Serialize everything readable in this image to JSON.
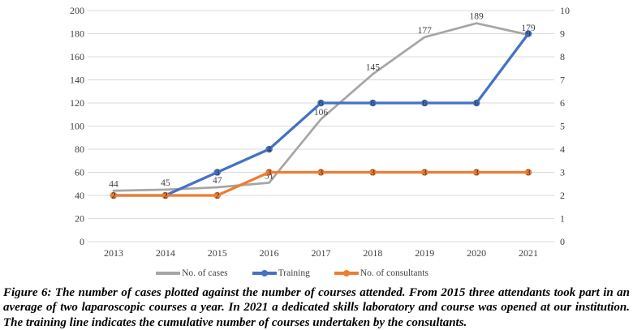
{
  "figure": {
    "caption": "Figure 6: The number of cases plotted against the number of courses attended.  From 2015 three attendants took part in an average of two laparoscopic courses a year. In 2021 a dedicated skills laboratory and course was opened at our institution. The training line indicates the cumulative number of courses undertaken by the consultants."
  },
  "chart_data": {
    "type": "line",
    "title": "",
    "xlabel": "",
    "ylabel": "",
    "grid": true,
    "legend_position": "bottom",
    "categories": [
      "2013",
      "2014",
      "2015",
      "2016",
      "2017",
      "2018",
      "2019",
      "2020",
      "2021"
    ],
    "series": [
      {
        "name": "No. of cases",
        "axis": "left",
        "color": "#A6A6A6",
        "marker": false,
        "label_position": "above",
        "values": [
          44,
          45,
          47,
          51,
          106,
          145,
          177,
          189,
          179
        ],
        "labels": [
          "44",
          "45",
          "47",
          "51",
          "106",
          "145",
          "177",
          "189",
          "179"
        ]
      },
      {
        "name": "Training",
        "axis": "right",
        "color": "#4472C4",
        "marker": true,
        "label_position": "center",
        "values": [
          2,
          2,
          3,
          4,
          6,
          6,
          6,
          6,
          9
        ],
        "labels": [
          "2",
          "2",
          "3",
          "4",
          "6",
          "6",
          "6",
          "6",
          "9"
        ]
      },
      {
        "name": "No. of consultants",
        "axis": "right",
        "color": "#ED7D31",
        "marker": true,
        "label_position": "center",
        "values": [
          2,
          2,
          2,
          3,
          3,
          3,
          3,
          3,
          3
        ],
        "labels": [
          "2",
          "2",
          "2",
          "3",
          "3",
          "3",
          "3",
          "3",
          "3"
        ]
      }
    ],
    "left_axis": {
      "min": 0,
      "max": 200,
      "step": 20,
      "ticks": [
        "0",
        "20",
        "40",
        "60",
        "80",
        "100",
        "120",
        "140",
        "160",
        "180",
        "200"
      ]
    },
    "right_axis": {
      "min": 0,
      "max": 10,
      "step": 1,
      "ticks": [
        "0",
        "1",
        "2",
        "3",
        "4",
        "5",
        "6",
        "7",
        "8",
        "9",
        "10"
      ]
    },
    "colors": {
      "gridline": "#D9D9D9",
      "tick_text": "#404040",
      "data_label": "#404040",
      "center_label": "#333333"
    }
  }
}
